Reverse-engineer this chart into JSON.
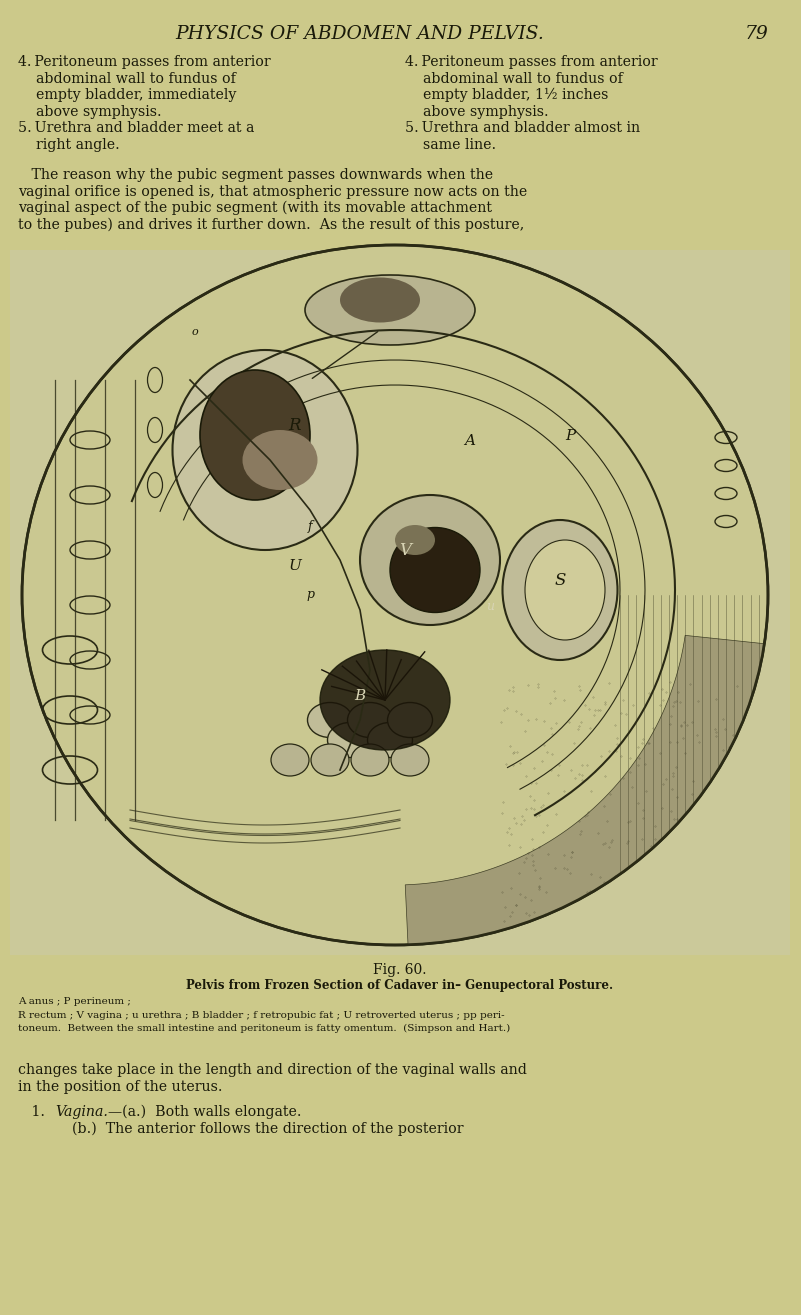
{
  "background_color": "#ccc98a",
  "text_color": "#1a1a0a",
  "title_text": "PHYSICS OF ABDOMEN AND PELVIS.",
  "page_number": "79",
  "title_fontsize": 13.5,
  "body_fontsize": 10.2,
  "small_fontsize": 8.0,
  "col1_lines": [
    "4. Peritoneum passes from anterior",
    "    abdominal wall to fundus of",
    "    empty bladder, immediately",
    "    above symphysis.",
    "5. Urethra and bladder meet at a",
    "    right angle."
  ],
  "col2_lines": [
    "4. Peritoneum passes from anterior",
    "    abdominal wall to fundus of",
    "    empty bladder, 1½ inches",
    "    above symphysis.",
    "5. Urethra and bladder almost in",
    "    same line."
  ],
  "body_para1": [
    "   The reason why the pubic segment passes downwards when the",
    "vaginal orifice is opened is, that atmospheric pressure now acts on the",
    "vaginal aspect of the pubic segment (with its movable attachment",
    "to the pubes) and drives it further down.  As the result of this posture,"
  ],
  "fig_caption": "Fig. 60.",
  "fig_label_bold": "Pelvis from Frozen Section of Cadaver in– Genupectoral Posture.",
  "fig_detail_lines": [
    "A anus ; P perineum ;",
    "R rectum ; V vagina ; u urethra ; B bladder ; f retropubic fat ; U retroverted uterus ; pp peri-",
    "toneum.  Between the small intestine and peritoneum is fatty omentum.  (Simpson and Hart.)"
  ],
  "body_para2": [
    "changes take place in the length and direction of the vaginal walls and",
    "in the position of the uterus."
  ],
  "line_vagina": "   1.  Vagina.—(a.)  Both walls elongate.",
  "line_b": "            (b.)  The anterior follows the direction of the posterior"
}
